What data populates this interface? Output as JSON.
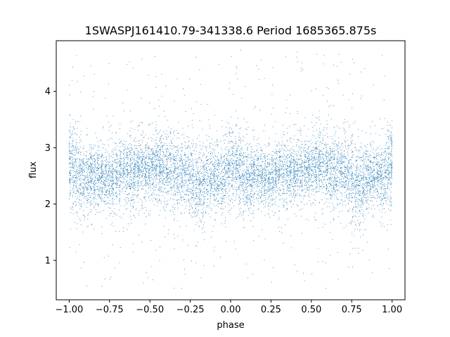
{
  "chart_data": {
    "type": "scatter",
    "title": "1SWASPJ161410.79-341338.6 Period 1685365.875s",
    "xlabel": "phase",
    "ylabel": "flux",
    "xlim": [
      -1.08,
      1.08
    ],
    "ylim": [
      0.3,
      4.9
    ],
    "xticks": [
      -1.0,
      -0.75,
      -0.5,
      -0.25,
      0.0,
      0.25,
      0.5,
      0.75,
      1.0
    ],
    "xtick_labels": [
      "−1.00",
      "−0.75",
      "−0.50",
      "−0.25",
      "0.00",
      "0.25",
      "0.50",
      "0.75",
      "1.00"
    ],
    "yticks": [
      1,
      2,
      3,
      4
    ],
    "ytick_labels": [
      "1",
      "2",
      "3",
      "4"
    ],
    "grid": false,
    "marker_color": "#1f77b4",
    "series": [
      {
        "description": "phase-folded light curve (pattern repeats with period 1 in phase); approximate density profile",
        "x_range": [
          -1.0,
          1.0
        ],
        "point_count_estimate": 9000,
        "profile": [
          {
            "phase": -1.0,
            "median": 2.75,
            "spread": 0.35
          },
          {
            "phase": -0.95,
            "median": 2.55,
            "spread": 0.35
          },
          {
            "phase": -0.9,
            "median": 2.45,
            "spread": 0.3
          },
          {
            "phase": -0.85,
            "median": 2.5,
            "spread": 0.3
          },
          {
            "phase": -0.8,
            "median": 2.5,
            "spread": 0.25
          },
          {
            "phase": -0.75,
            "median": 2.4,
            "spread": 0.25
          },
          {
            "phase": -0.7,
            "median": 2.55,
            "spread": 0.25
          },
          {
            "phase": -0.65,
            "median": 2.6,
            "spread": 0.3
          },
          {
            "phase": -0.6,
            "median": 2.55,
            "spread": 0.25
          },
          {
            "phase": -0.55,
            "median": 2.65,
            "spread": 0.3
          },
          {
            "phase": -0.5,
            "median": 2.6,
            "spread": 0.25
          },
          {
            "phase": -0.45,
            "median": 2.7,
            "spread": 0.3
          },
          {
            "phase": -0.4,
            "median": 2.65,
            "spread": 0.3
          },
          {
            "phase": -0.35,
            "median": 2.6,
            "spread": 0.3
          },
          {
            "phase": -0.3,
            "median": 2.6,
            "spread": 0.3
          },
          {
            "phase": -0.25,
            "median": 2.5,
            "spread": 0.35
          },
          {
            "phase": -0.2,
            "median": 2.3,
            "spread": 0.35
          },
          {
            "phase": -0.15,
            "median": 2.45,
            "spread": 0.3
          },
          {
            "phase": -0.1,
            "median": 2.5,
            "spread": 0.25
          },
          {
            "phase": -0.05,
            "median": 2.45,
            "spread": 0.3
          }
        ],
        "outlier_range": [
          0.5,
          4.75
        ]
      }
    ]
  }
}
